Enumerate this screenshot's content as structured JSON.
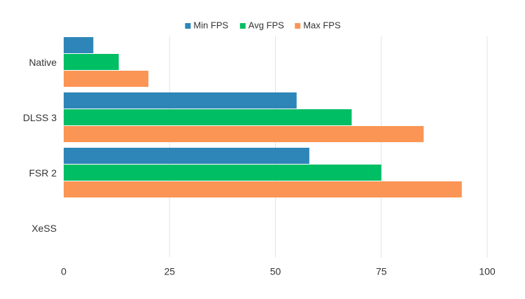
{
  "chart_data": {
    "type": "bar",
    "orientation": "horizontal",
    "categories": [
      "Native",
      "DLSS 3",
      "FSR 2",
      "XeSS"
    ],
    "series": [
      {
        "name": "Min FPS",
        "color": "#2e86b8",
        "values": [
          7,
          55,
          58,
          null
        ]
      },
      {
        "name": "Avg FPS",
        "color": "#00be64",
        "values": [
          13,
          68,
          75,
          null
        ]
      },
      {
        "name": "Max FPS",
        "color": "#fb9555",
        "values": [
          20,
          85,
          94,
          null
        ]
      }
    ],
    "xlim": [
      0,
      100
    ],
    "xticks": [
      0,
      25,
      50,
      75,
      100
    ],
    "xtick_labels": [
      "0",
      "25",
      "50",
      "75",
      "100"
    ],
    "grid": "vertical",
    "legend_position": "top-center",
    "title": "",
    "xlabel": "",
    "ylabel": ""
  }
}
